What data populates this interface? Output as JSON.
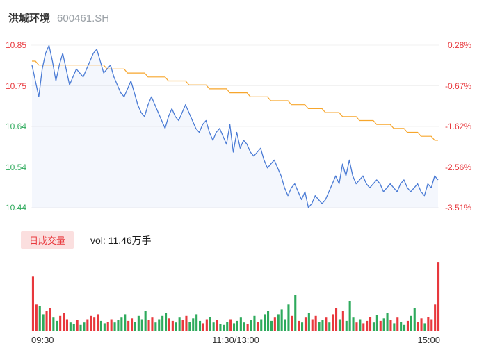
{
  "header": {
    "title": "洪城环境",
    "code": "600461.SH"
  },
  "volume_section": {
    "legend": "日成交量",
    "vol_text": "vol: 11.46万手",
    "pill_bg": "#fbdfdf",
    "pill_fg": "#e8383d"
  },
  "chart_data": [
    {
      "type": "line",
      "title": "洪城环境 600461.SH",
      "x_labels": [
        "09:30",
        "11:30/13:00",
        "15:00"
      ],
      "y_axis_left": {
        "labels": [
          "10.85",
          "10.75",
          "10.64",
          "10.54",
          "10.44"
        ],
        "colors": [
          "#e8383d",
          "#e8383d",
          "#2eaa5c",
          "#2eaa5c",
          "#2eaa5c"
        ]
      },
      "y_axis_right": {
        "labels": [
          "0.28%",
          "-0.67%",
          "-1.62%",
          "-2.56%",
          "-3.51%"
        ],
        "colors": [
          "#e8383d",
          "#e8383d",
          "#e8383d",
          "#e8383d",
          "#e8383d"
        ]
      },
      "ylim": [
        10.4397,
        10.8503
      ],
      "grid": true,
      "legend_position": "none",
      "series": [
        {
          "name": "price",
          "color": "#4a7bd5",
          "area_fill": "rgba(74,123,213,0.06)",
          "values": [
            10.8,
            10.76,
            10.72,
            10.79,
            10.83,
            10.85,
            10.81,
            10.76,
            10.8,
            10.83,
            10.79,
            10.75,
            10.77,
            10.79,
            10.78,
            10.77,
            10.79,
            10.81,
            10.83,
            10.84,
            10.81,
            10.78,
            10.79,
            10.8,
            10.77,
            10.75,
            10.73,
            10.72,
            10.74,
            10.76,
            10.73,
            10.7,
            10.68,
            10.67,
            10.7,
            10.72,
            10.7,
            10.68,
            10.66,
            10.64,
            10.67,
            10.69,
            10.67,
            10.66,
            10.68,
            10.7,
            10.68,
            10.66,
            10.64,
            10.63,
            10.65,
            10.66,
            10.63,
            10.61,
            10.63,
            10.64,
            10.62,
            10.6,
            10.65,
            10.58,
            10.63,
            10.59,
            10.61,
            10.6,
            10.58,
            10.57,
            10.58,
            10.59,
            10.56,
            10.54,
            10.55,
            10.56,
            10.54,
            10.52,
            10.49,
            10.47,
            10.49,
            10.5,
            10.48,
            10.46,
            10.48,
            10.44,
            10.45,
            10.47,
            10.46,
            10.45,
            10.46,
            10.48,
            10.5,
            10.52,
            10.5,
            10.55,
            10.52,
            10.56,
            10.52,
            10.5,
            10.51,
            10.52,
            10.5,
            10.49,
            10.5,
            10.51,
            10.5,
            10.48,
            10.49,
            10.5,
            10.49,
            10.48,
            10.5,
            10.51,
            10.49,
            10.48,
            10.49,
            10.5,
            10.48,
            10.47,
            10.5,
            10.49,
            10.52,
            10.51
          ]
        },
        {
          "name": "avg",
          "color": "#f7a62c",
          "values": [
            10.81,
            10.81,
            10.8,
            10.8,
            10.8,
            10.8,
            10.8,
            10.8,
            10.8,
            10.8,
            10.8,
            10.8,
            10.8,
            10.8,
            10.8,
            10.8,
            10.8,
            10.8,
            10.8,
            10.8,
            10.8,
            10.8,
            10.79,
            10.79,
            10.79,
            10.79,
            10.79,
            10.79,
            10.78,
            10.78,
            10.78,
            10.78,
            10.78,
            10.78,
            10.77,
            10.77,
            10.77,
            10.77,
            10.77,
            10.77,
            10.76,
            10.76,
            10.76,
            10.76,
            10.76,
            10.76,
            10.75,
            10.75,
            10.75,
            10.75,
            10.75,
            10.75,
            10.74,
            10.74,
            10.74,
            10.74,
            10.74,
            10.74,
            10.73,
            10.73,
            10.73,
            10.73,
            10.73,
            10.73,
            10.72,
            10.72,
            10.72,
            10.72,
            10.72,
            10.72,
            10.71,
            10.71,
            10.71,
            10.71,
            10.71,
            10.71,
            10.7,
            10.7,
            10.7,
            10.7,
            10.7,
            10.69,
            10.69,
            10.69,
            10.69,
            10.69,
            10.68,
            10.68,
            10.68,
            10.68,
            10.68,
            10.67,
            10.67,
            10.67,
            10.67,
            10.67,
            10.66,
            10.66,
            10.66,
            10.66,
            10.66,
            10.65,
            10.65,
            10.65,
            10.65,
            10.65,
            10.64,
            10.64,
            10.64,
            10.64,
            10.63,
            10.63,
            10.63,
            10.63,
            10.62,
            10.62,
            10.62,
            10.62,
            10.61,
            10.61
          ]
        }
      ]
    },
    {
      "type": "bar",
      "name": "volume",
      "ymax": 4500,
      "up_color": "#e8383d",
      "down_color": "#2eaa5c",
      "values": [
        3300,
        1600,
        1500,
        1000,
        1200,
        1400,
        800,
        600,
        900,
        1100,
        700,
        500,
        400,
        650,
        350,
        500,
        700,
        900,
        800,
        1000,
        600,
        450,
        550,
        700,
        500,
        650,
        800,
        1000,
        600,
        750,
        550,
        900,
        700,
        1200,
        650,
        800,
        500,
        700,
        900,
        1100,
        750,
        600,
        500,
        800,
        650,
        900,
        550,
        750,
        1000,
        600,
        450,
        700,
        850,
        500,
        650,
        400,
        350,
        550,
        700,
        450,
        600,
        800,
        500,
        400,
        650,
        900,
        550,
        700,
        1000,
        1200,
        600,
        800,
        1000,
        1300,
        700,
        1600,
        900,
        2200,
        600,
        500,
        800,
        1100,
        700,
        900,
        550,
        650,
        800,
        500,
        1000,
        1400,
        700,
        1200,
        600,
        1800,
        800,
        500,
        700,
        450,
        600,
        850,
        500,
        950,
        600,
        750,
        1100,
        650,
        450,
        800,
        550,
        350,
        600,
        900,
        1400,
        550,
        750,
        450,
        850,
        700,
        1600,
        4200
      ],
      "flags": [
        "r",
        "r",
        "g",
        "g",
        "r",
        "r",
        "g",
        "g",
        "r",
        "r",
        "r",
        "g",
        "g",
        "r",
        "g",
        "g",
        "r",
        "r",
        "r",
        "r",
        "g",
        "g",
        "r",
        "r",
        "g",
        "g",
        "g",
        "g",
        "r",
        "r",
        "g",
        "g",
        "g",
        "g",
        "r",
        "r",
        "g",
        "g",
        "g",
        "g",
        "r",
        "r",
        "g",
        "g",
        "r",
        "r",
        "g",
        "g",
        "g",
        "g",
        "r",
        "r",
        "g",
        "g",
        "r",
        "g",
        "g",
        "g",
        "r",
        "g",
        "g",
        "g",
        "g",
        "r",
        "g",
        "g",
        "r",
        "g",
        "g",
        "g",
        "g",
        "r",
        "g",
        "g",
        "g",
        "g",
        "r",
        "g",
        "r",
        "g",
        "r",
        "g",
        "r",
        "r",
        "g",
        "g",
        "r",
        "g",
        "r",
        "r",
        "g",
        "r",
        "g",
        "g",
        "g",
        "r",
        "g",
        "r",
        "r",
        "r",
        "g",
        "g",
        "r",
        "g",
        "g",
        "r",
        "g",
        "r",
        "g",
        "g",
        "r",
        "g",
        "g",
        "r",
        "r",
        "g",
        "r",
        "r",
        "r",
        "r"
      ]
    }
  ]
}
